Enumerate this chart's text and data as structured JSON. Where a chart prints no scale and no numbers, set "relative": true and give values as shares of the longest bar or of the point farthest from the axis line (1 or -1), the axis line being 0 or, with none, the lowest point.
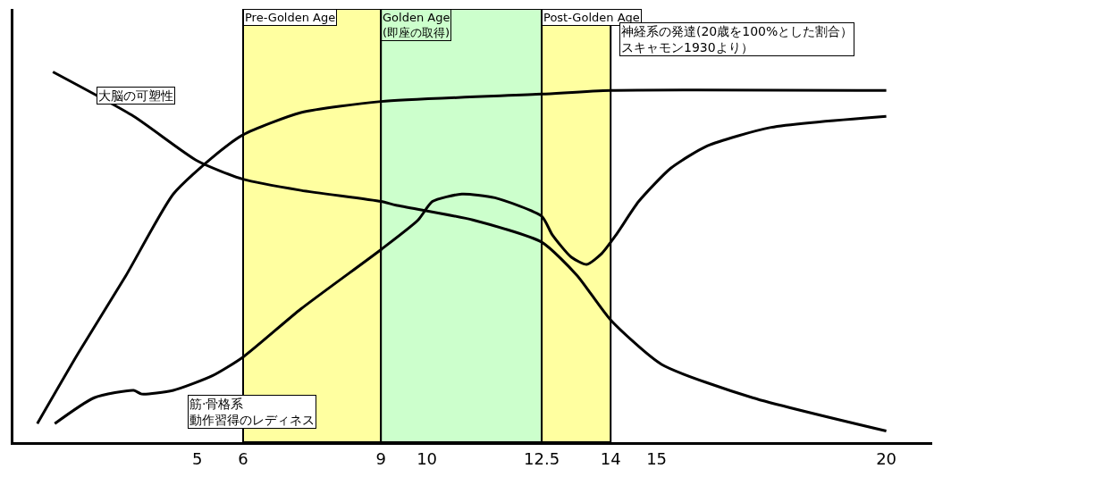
{
  "chart_data": {
    "type": "line",
    "relative": true,
    "legend": false,
    "grid": false,
    "marker": "none",
    "line_style": "solid",
    "xlim": [
      1,
      21
    ],
    "xticks": [
      5,
      6,
      9,
      10,
      12.5,
      14,
      15,
      20
    ],
    "series": [
      {
        "name": "大脳の可塑性",
        "color": "#000000",
        "x": [
          1.86,
          3.62,
          5,
          6,
          7.26,
          9,
          9.33,
          11,
          12.5,
          13.27,
          14,
          15.11,
          17.09,
          20
        ],
        "values": [
          1.0,
          0.88,
          0.76,
          0.71,
          0.68,
          0.65,
          0.64,
          0.6,
          0.54,
          0.45,
          0.33,
          0.21,
          0.12,
          0.03
        ]
      },
      {
        "name": "神経系の発達(20歳を100%とした割合）スキャモン1930より）",
        "color": "#000000",
        "x": [
          1.52,
          2.41,
          3.45,
          4.48,
          5.34,
          6,
          7.26,
          9,
          12.5,
          14,
          20
        ],
        "values": [
          0.05,
          0.24,
          0.45,
          0.67,
          0.77,
          0.83,
          0.89,
          0.92,
          0.94,
          0.95,
          0.95
        ]
      },
      {
        "name": "筋·骨格系動作習得のレディネス",
        "color": "#000000",
        "x": [
          1.9,
          2.76,
          3.62,
          3.79,
          4.48,
          5.34,
          6,
          7.26,
          9,
          9.81,
          10.12,
          10.76,
          11.48,
          12.5,
          12.73,
          13.14,
          13.48,
          13.81,
          14.12,
          14.61,
          15.31,
          16.1,
          17.49,
          20
        ],
        "values": [
          0.05,
          0.12,
          0.14,
          0.13,
          0.14,
          0.18,
          0.23,
          0.36,
          0.52,
          0.6,
          0.65,
          0.67,
          0.66,
          0.61,
          0.56,
          0.5,
          0.48,
          0.51,
          0.56,
          0.65,
          0.74,
          0.8,
          0.85,
          0.88
        ]
      }
    ],
    "bands": [
      {
        "axis": "x",
        "from": 6,
        "to": 9,
        "label": "Pre-Golden Age",
        "color": "#ffffa0"
      },
      {
        "axis": "x",
        "from": 9,
        "to": 12.5,
        "label": "Golden Age\n(即座の取得)",
        "color": "#ccffcc"
      },
      {
        "axis": "x",
        "from": 12.5,
        "to": 14,
        "label": "Post-Golden Age",
        "color": "#ffffa0"
      }
    ]
  }
}
